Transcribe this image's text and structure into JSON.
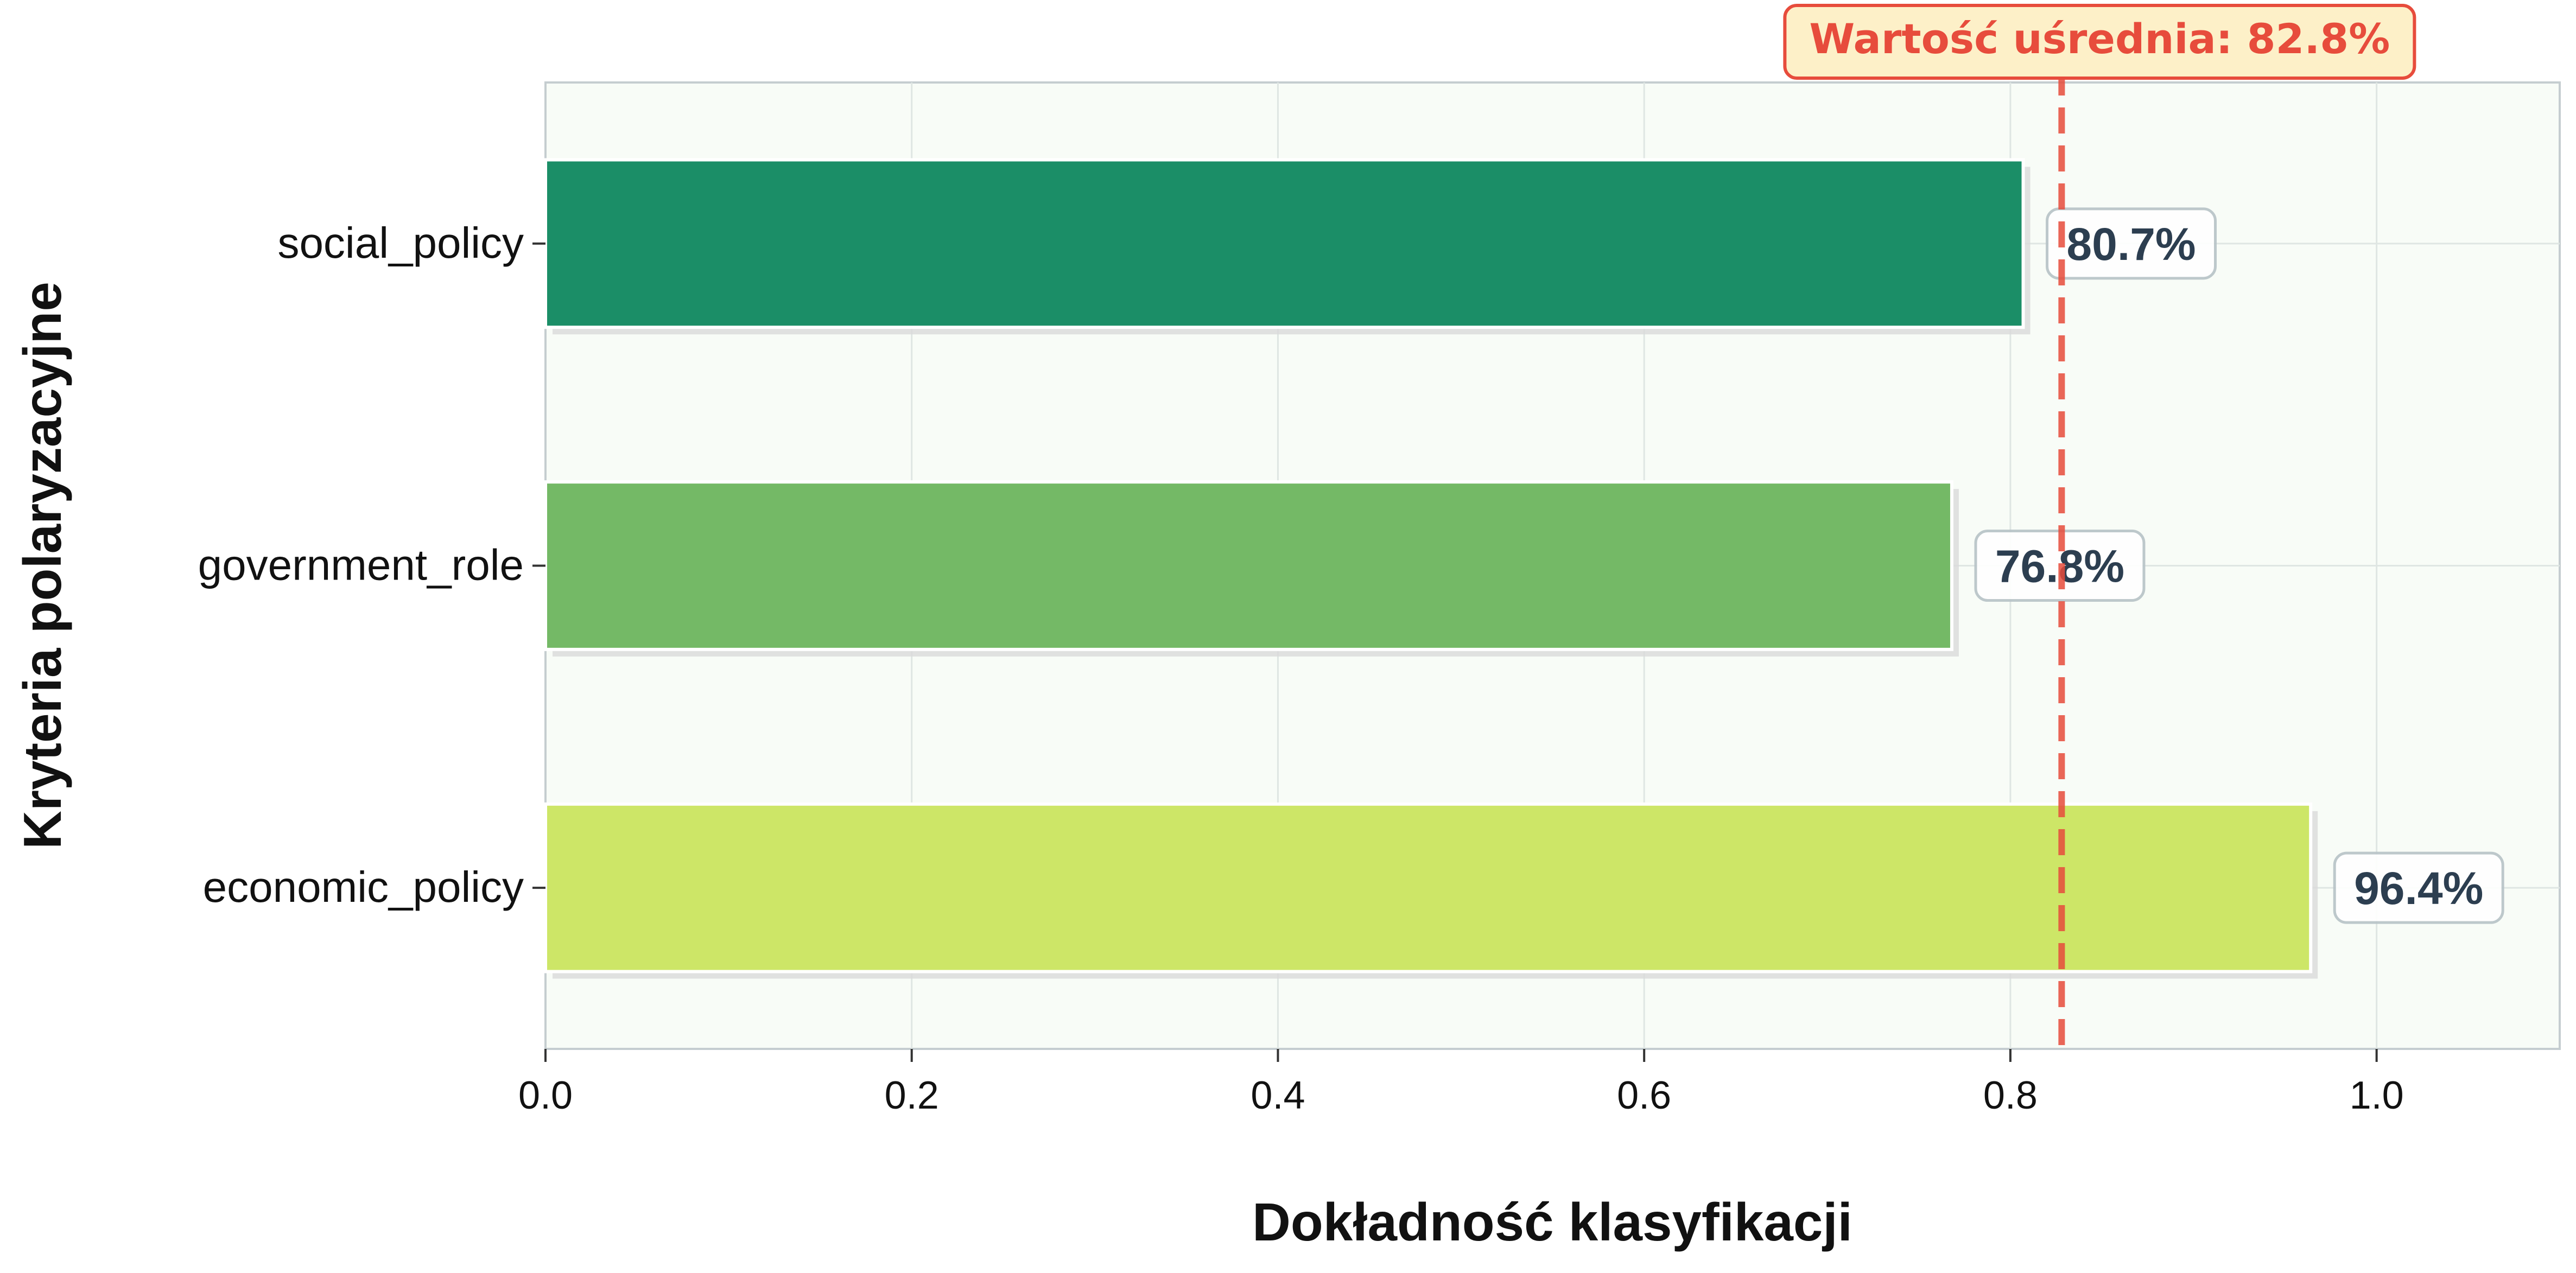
{
  "chart_data": {
    "type": "bar",
    "orientation": "horizontal",
    "title": "",
    "xlabel": "Dokładność klasyfikacji",
    "ylabel": "Kryteria polaryzacyjne",
    "xlim": [
      0,
      1.1
    ],
    "xticks": [
      "0.0",
      "0.2",
      "0.4",
      "0.6",
      "0.8",
      "1.0"
    ],
    "xtick_values": [
      0.0,
      0.2,
      0.4,
      0.6,
      0.8,
      1.0
    ],
    "grid": true,
    "categories": [
      "social_policy",
      "government_role",
      "economic_policy"
    ],
    "values": [
      0.807,
      0.768,
      0.964
    ],
    "data_labels": [
      "80.7%",
      "76.8%",
      "96.4%"
    ],
    "bar_colors": [
      "#1b8e67",
      "#74b966",
      "#cde667"
    ],
    "mean_line": {
      "value": 0.828,
      "label": "Wartość uśrednia: 82.8%",
      "color": "#e74c3c"
    },
    "plot_background": "#f8fcf7"
  }
}
